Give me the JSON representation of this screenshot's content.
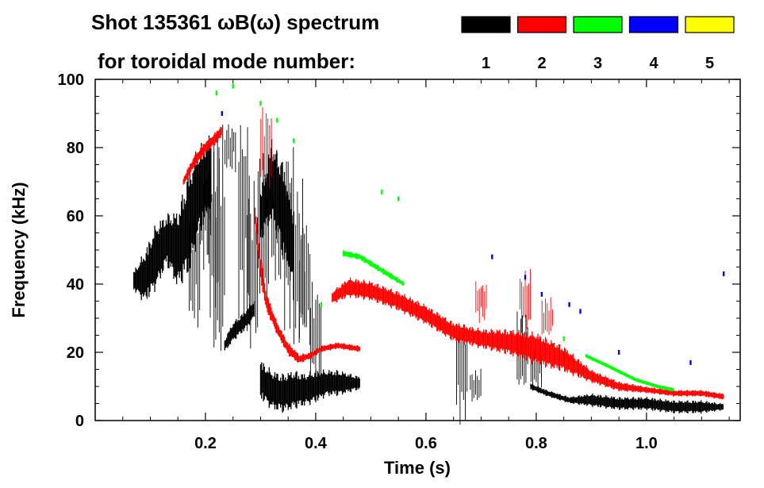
{
  "chart_data": {
    "type": "scatter",
    "title_line1": "Shot 135361 ωB(ω) spectrum",
    "title_line2": "for toroidal mode number:",
    "xlabel": "Time (s)",
    "ylabel": "Frequency (kHz)",
    "xlim": [
      0.0,
      1.17
    ],
    "ylim": [
      0,
      100
    ],
    "xticks": [
      0.2,
      0.4,
      0.6,
      0.8,
      1.0
    ],
    "xtick_labels": [
      "0.2",
      "0.4",
      "0.6",
      "0.8",
      "1.0"
    ],
    "yticks": [
      0,
      20,
      40,
      60,
      80,
      100
    ],
    "ytick_labels": [
      "0",
      "20",
      "40",
      "60",
      "80",
      "100"
    ],
    "legend_position": "top-right",
    "series": [
      {
        "name": "1",
        "color": "#000000"
      },
      {
        "name": "2",
        "color": "#ff0000"
      },
      {
        "name": "3",
        "color": "#00ff00"
      },
      {
        "name": "4",
        "color": "#0000ff"
      },
      {
        "name": "5",
        "color": "#ffff00"
      }
    ],
    "features": [
      {
        "mode": "1",
        "kind": "band",
        "points": [
          [
            0.07,
            41,
            3
          ],
          [
            0.09,
            42,
            8
          ],
          [
            0.11,
            48,
            10
          ],
          [
            0.13,
            53,
            8
          ],
          [
            0.15,
            50,
            12
          ],
          [
            0.17,
            58,
            16
          ],
          [
            0.19,
            68,
            14
          ],
          [
            0.21,
            72,
            12
          ]
        ]
      },
      {
        "mode": "1",
        "kind": "band",
        "points": [
          [
            0.235,
            22,
            2
          ],
          [
            0.25,
            26,
            3
          ],
          [
            0.27,
            29,
            3
          ],
          [
            0.29,
            33,
            3
          ]
        ]
      },
      {
        "mode": "1",
        "kind": "band",
        "points": [
          [
            0.3,
            60,
            8
          ],
          [
            0.32,
            70,
            12
          ],
          [
            0.34,
            62,
            15
          ],
          [
            0.36,
            50,
            12
          ]
        ]
      },
      {
        "mode": "1",
        "kind": "band",
        "points": [
          [
            0.3,
            12,
            6
          ],
          [
            0.32,
            9,
            6
          ],
          [
            0.34,
            8,
            6
          ],
          [
            0.36,
            9,
            6
          ],
          [
            0.38,
            9,
            5
          ],
          [
            0.4,
            10,
            5
          ],
          [
            0.42,
            11,
            4
          ],
          [
            0.44,
            11,
            4
          ],
          [
            0.46,
            11,
            3
          ],
          [
            0.48,
            11,
            2
          ]
        ]
      },
      {
        "mode": "1",
        "kind": "band",
        "points": [
          [
            0.79,
            10,
            1
          ],
          [
            0.82,
            8,
            1
          ],
          [
            0.86,
            6,
            1
          ],
          [
            0.9,
            6,
            2
          ],
          [
            0.95,
            5,
            2
          ],
          [
            1.0,
            5,
            2
          ],
          [
            1.05,
            4,
            2
          ],
          [
            1.1,
            4,
            2
          ],
          [
            1.14,
            4,
            1
          ]
        ]
      },
      {
        "mode": "1",
        "kind": "streaks",
        "points": [
          [
            0.18,
            45,
            30
          ],
          [
            0.2,
            60,
            25
          ],
          [
            0.215,
            55,
            40
          ],
          [
            0.225,
            50,
            60
          ],
          [
            0.245,
            80,
            12
          ],
          [
            0.27,
            60,
            50
          ],
          [
            0.285,
            45,
            40
          ],
          [
            0.305,
            55,
            40
          ],
          [
            0.33,
            60,
            35
          ],
          [
            0.35,
            55,
            45
          ],
          [
            0.37,
            45,
            40
          ],
          [
            0.38,
            40,
            30
          ],
          [
            0.4,
            25,
            25
          ],
          [
            0.665,
            15,
            25
          ],
          [
            0.69,
            10,
            8
          ],
          [
            0.775,
            20,
            20
          ],
          [
            0.8,
            15,
            10
          ]
        ]
      },
      {
        "mode": "2",
        "kind": "band",
        "points": [
          [
            0.16,
            70,
            1.5
          ],
          [
            0.18,
            76,
            2
          ],
          [
            0.2,
            80,
            2
          ],
          [
            0.22,
            83,
            2
          ],
          [
            0.23,
            85,
            2
          ]
        ]
      },
      {
        "mode": "2",
        "kind": "band",
        "points": [
          [
            0.29,
            60,
            3
          ],
          [
            0.3,
            45,
            4
          ],
          [
            0.31,
            35,
            3
          ],
          [
            0.33,
            27,
            2
          ],
          [
            0.35,
            21,
            2
          ],
          [
            0.37,
            18,
            1.5
          ],
          [
            0.39,
            19,
            1
          ],
          [
            0.41,
            21,
            1
          ],
          [
            0.44,
            22,
            1
          ],
          [
            0.48,
            21,
            1
          ]
        ]
      },
      {
        "mode": "2",
        "kind": "band",
        "points": [
          [
            0.43,
            36,
            2
          ],
          [
            0.46,
            39,
            3
          ],
          [
            0.5,
            38,
            3
          ],
          [
            0.55,
            35,
            3
          ],
          [
            0.6,
            31,
            3
          ],
          [
            0.65,
            26,
            3
          ],
          [
            0.7,
            24,
            3
          ],
          [
            0.75,
            23,
            4
          ],
          [
            0.8,
            21,
            5
          ],
          [
            0.85,
            18,
            4
          ],
          [
            0.9,
            13,
            2
          ],
          [
            0.95,
            10,
            1.5
          ],
          [
            1.0,
            9,
            1
          ],
          [
            1.05,
            8,
            1
          ],
          [
            1.1,
            8,
            1
          ],
          [
            1.14,
            7,
            1
          ]
        ]
      },
      {
        "mode": "2",
        "kind": "streaks",
        "points": [
          [
            0.31,
            80,
            20
          ],
          [
            0.7,
            35,
            10
          ],
          [
            0.78,
            35,
            15
          ],
          [
            0.82,
            30,
            10
          ]
        ]
      },
      {
        "mode": "3",
        "kind": "band",
        "points": [
          [
            0.45,
            49,
            1
          ],
          [
            0.48,
            48,
            1
          ],
          [
            0.51,
            45,
            1
          ],
          [
            0.54,
            42,
            1
          ],
          [
            0.56,
            40,
            0.8
          ]
        ]
      },
      {
        "mode": "3",
        "kind": "band",
        "points": [
          [
            0.89,
            19,
            0.6
          ],
          [
            0.93,
            16,
            0.6
          ],
          [
            0.98,
            12,
            0.6
          ],
          [
            1.02,
            10,
            0.5
          ],
          [
            1.05,
            9,
            0.5
          ]
        ]
      },
      {
        "mode": "3",
        "kind": "scatter",
        "points": [
          [
            0.22,
            96,
            0
          ],
          [
            0.25,
            98,
            0
          ],
          [
            0.3,
            93,
            0
          ],
          [
            0.33,
            88,
            0
          ],
          [
            0.36,
            82,
            0
          ],
          [
            0.41,
            34,
            0
          ],
          [
            0.52,
            67,
            0
          ],
          [
            0.55,
            65,
            0
          ],
          [
            0.85,
            24,
            0
          ]
        ]
      },
      {
        "mode": "4",
        "kind": "scatter",
        "points": [
          [
            0.23,
            90,
            0
          ],
          [
            0.72,
            48,
            0
          ],
          [
            0.78,
            42,
            0
          ],
          [
            0.81,
            37,
            0
          ],
          [
            0.86,
            34,
            0
          ],
          [
            0.88,
            32,
            0
          ],
          [
            0.95,
            20,
            0
          ],
          [
            1.08,
            17,
            0
          ],
          [
            1.14,
            43,
            0
          ]
        ]
      },
      {
        "mode": "5",
        "kind": "scatter",
        "points": []
      }
    ]
  }
}
